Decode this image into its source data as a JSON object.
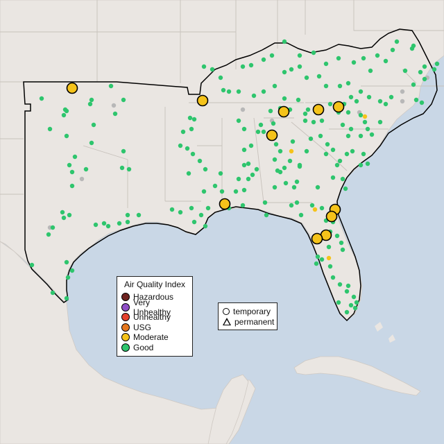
{
  "colors": {
    "hazardous": "#6e2320",
    "very_unhealthy": "#8e4ec6",
    "unhealthy": "#e5412d",
    "usg": "#e5771e",
    "moderate": "#f5c31a",
    "good": "#2ec56d",
    "unavailable": "#b8b8b8",
    "land": "#eae6e2",
    "water": "#c9d7e6"
  },
  "aqi_legend": {
    "title": "Air Quality Index",
    "items": [
      {
        "label": "Hazardous",
        "color_key": "hazardous"
      },
      {
        "label": "Very Unhealthy",
        "color_key": "very_unhealthy"
      },
      {
        "label": "Unhealthy",
        "color_key": "unhealthy"
      },
      {
        "label": "USG",
        "color_key": "usg"
      },
      {
        "label": "Moderate",
        "color_key": "moderate"
      },
      {
        "label": "Good",
        "color_key": "good"
      }
    ]
  },
  "monitor_type_legend": {
    "temporary": "temporary",
    "permanent": "permanent"
  }
}
